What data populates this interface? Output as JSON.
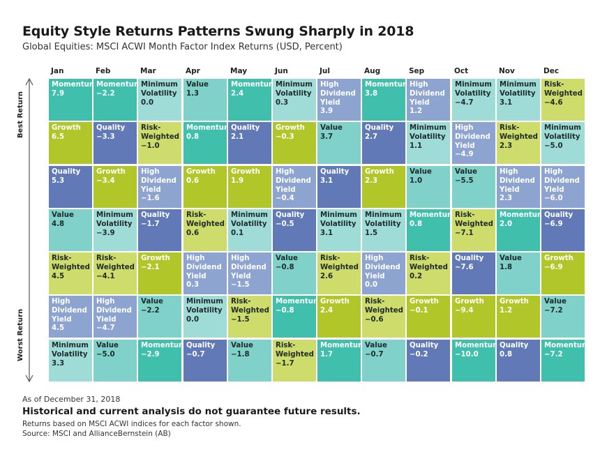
{
  "title": "Equity Style Returns Patterns Swung Sharply in 2018",
  "subtitle": "Global Equities: MSCI ACWI Month Factor Index Returns (USD, Percent)",
  "axis": {
    "best": "Best Return",
    "worst": "Worst Return"
  },
  "colors": {
    "Momentum": "#40bfad",
    "Minimum Volatility": "#9fdcd8",
    "Value": "#7fd1ca",
    "High Dividend Yield": "#8da3d0",
    "Growth": "#b0c629",
    "Quality": "#6179b7",
    "Risk-Weighted": "#cddc6b"
  },
  "footer": {
    "as_of": "As of December 31, 2018",
    "disclaimer": "Historical and current analysis do not guarantee future results.",
    "note": "Returns based on MSCI ACWI indices for each factor shown.",
    "source": "Source: MSCI and AllianceBernstein (AB)"
  },
  "chart_data": {
    "type": "table",
    "title": "Equity Style Returns Patterns Swung Sharply in 2018",
    "subtitle": "Global Equities: MSCI ACWI Month Factor Index Returns (USD, Percent)",
    "row_order": "ranked from Best Return (top) to Worst Return (bottom)",
    "months": [
      {
        "name": "Jan",
        "rank": [
          {
            "factor": "Momentum",
            "value": "7.9"
          },
          {
            "factor": "Growth",
            "value": "6.5"
          },
          {
            "factor": "Quality",
            "value": "5.3"
          },
          {
            "factor": "Value",
            "value": "4.8"
          },
          {
            "factor": "Risk-Weighted",
            "value": "4.5"
          },
          {
            "factor": "High Dividend Yield",
            "value": "4.5"
          },
          {
            "factor": "Minimum Volatility",
            "value": "3.3"
          }
        ]
      },
      {
        "name": "Feb",
        "rank": [
          {
            "factor": "Momentum",
            "value": "−2.2"
          },
          {
            "factor": "Quality",
            "value": "−3.3"
          },
          {
            "factor": "Growth",
            "value": "−3.4"
          },
          {
            "factor": "Minimum Volatility",
            "value": "−3.9"
          },
          {
            "factor": "Risk-Weighted",
            "value": "−4.1"
          },
          {
            "factor": "High Dividend Yield",
            "value": "−4.7"
          },
          {
            "factor": "Value",
            "value": "−5.0"
          }
        ]
      },
      {
        "name": "Mar",
        "rank": [
          {
            "factor": "Minimum Volatility",
            "value": "0.0"
          },
          {
            "factor": "Risk-Weighted",
            "value": "−1.0"
          },
          {
            "factor": "High Dividend Yield",
            "value": "−1.6"
          },
          {
            "factor": "Quality",
            "value": "−1.7"
          },
          {
            "factor": "Growth",
            "value": "−2.1"
          },
          {
            "factor": "Value",
            "value": "−2.2"
          },
          {
            "factor": "Momentum",
            "value": "−2.9"
          }
        ]
      },
      {
        "name": "Apr",
        "rank": [
          {
            "factor": "Value",
            "value": "1.3"
          },
          {
            "factor": "Momentum",
            "value": "0.8"
          },
          {
            "factor": "Growth",
            "value": "0.6"
          },
          {
            "factor": "Risk-Weighted",
            "value": "0.6"
          },
          {
            "factor": "High Dividend Yield",
            "value": "0.3"
          },
          {
            "factor": "Minimum Volatility",
            "value": "0.0"
          },
          {
            "factor": "Quality",
            "value": "−0.7"
          }
        ]
      },
      {
        "name": "May",
        "rank": [
          {
            "factor": "Momentum",
            "value": "2.4"
          },
          {
            "factor": "Quality",
            "value": "2.1"
          },
          {
            "factor": "Growth",
            "value": "1.9"
          },
          {
            "factor": "Minimum Volatility",
            "value": "0.1"
          },
          {
            "factor": "High Dividend Yield",
            "value": "−1.5"
          },
          {
            "factor": "Risk-Weighted",
            "value": "−1.5"
          },
          {
            "factor": "Value",
            "value": "−1.8"
          }
        ]
      },
      {
        "name": "Jun",
        "rank": [
          {
            "factor": "Minimum Volatility",
            "value": "0.3"
          },
          {
            "factor": "Growth",
            "value": "−0.3"
          },
          {
            "factor": "High Dividend Yield",
            "value": "−0.4"
          },
          {
            "factor": "Quality",
            "value": "−0.5"
          },
          {
            "factor": "Value",
            "value": "−0.8"
          },
          {
            "factor": "Momentum",
            "value": "−0.8"
          },
          {
            "factor": "Risk-Weighted",
            "value": "−1.7"
          }
        ]
      },
      {
        "name": "Jul",
        "rank": [
          {
            "factor": "High Dividend Yield",
            "value": "3.9"
          },
          {
            "factor": "Value",
            "value": "3.7"
          },
          {
            "factor": "Quality",
            "value": "3.1"
          },
          {
            "factor": "Minimum Volatility",
            "value": "3.1"
          },
          {
            "factor": "Risk-Weighted",
            "value": "2.6"
          },
          {
            "factor": "Growth",
            "value": "2.4"
          },
          {
            "factor": "Momentum",
            "value": "1.7"
          }
        ]
      },
      {
        "name": "Aug",
        "rank": [
          {
            "factor": "Momentum",
            "value": "3.8"
          },
          {
            "factor": "Quality",
            "value": "2.7"
          },
          {
            "factor": "Growth",
            "value": "2.3"
          },
          {
            "factor": "Minimum Volatility",
            "value": "1.5"
          },
          {
            "factor": "High Dividend Yield",
            "value": "0.0"
          },
          {
            "factor": "Risk-Weighted",
            "value": "−0.6"
          },
          {
            "factor": "Value",
            "value": "−0.7"
          }
        ]
      },
      {
        "name": "Sep",
        "rank": [
          {
            "factor": "High Dividend Yield",
            "value": "1.2"
          },
          {
            "factor": "Minimum Volatility",
            "value": "1.1"
          },
          {
            "factor": "Value",
            "value": "1.0"
          },
          {
            "factor": "Momentum",
            "value": "0.8"
          },
          {
            "factor": "Risk-Weighted",
            "value": "0.2"
          },
          {
            "factor": "Growth",
            "value": "−0.1"
          },
          {
            "factor": "Quality",
            "value": "−0.2"
          }
        ]
      },
      {
        "name": "Oct",
        "rank": [
          {
            "factor": "Minimum Volatility",
            "value": "−4.7"
          },
          {
            "factor": "High Dividend Yield",
            "value": "−4.9"
          },
          {
            "factor": "Value",
            "value": "−5.5"
          },
          {
            "factor": "Risk-Weighted",
            "value": "−7.1"
          },
          {
            "factor": "Quality",
            "value": "−7.6"
          },
          {
            "factor": "Growth",
            "value": "−9.4"
          },
          {
            "factor": "Momentum",
            "value": "−10.0"
          }
        ]
      },
      {
        "name": "Nov",
        "rank": [
          {
            "factor": "Minimum Volatility",
            "value": "3.1"
          },
          {
            "factor": "Risk-Weighted",
            "value": "2.3"
          },
          {
            "factor": "High Dividend Yield",
            "value": "2.3"
          },
          {
            "factor": "Momentum",
            "value": "2.0"
          },
          {
            "factor": "Value",
            "value": "1.8"
          },
          {
            "factor": "Growth",
            "value": "1.2"
          },
          {
            "factor": "Quality",
            "value": "0.8"
          }
        ]
      },
      {
        "name": "Dec",
        "rank": [
          {
            "factor": "Risk-Weighted",
            "value": "−4.6"
          },
          {
            "factor": "Minimum Volatility",
            "value": "−5.0"
          },
          {
            "factor": "High Dividend Yield",
            "value": "−6.0"
          },
          {
            "factor": "Quality",
            "value": "−6.9"
          },
          {
            "factor": "Growth",
            "value": "−6.9"
          },
          {
            "factor": "Value",
            "value": "−7.2"
          },
          {
            "factor": "Momentum",
            "value": "−7.2"
          }
        ]
      }
    ]
  }
}
